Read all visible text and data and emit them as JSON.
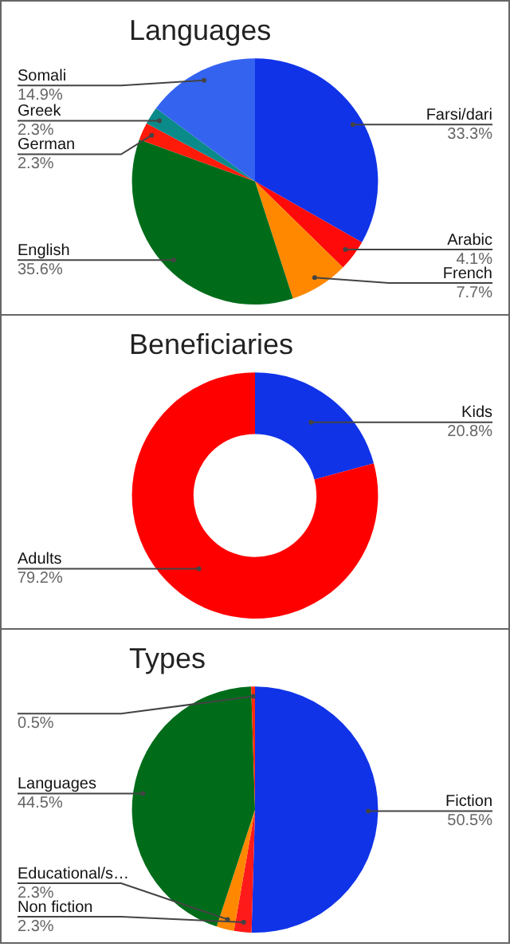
{
  "chart_data": [
    {
      "type": "pie",
      "title": "Languages",
      "categories": [
        "Farsi/dari",
        "Arabic",
        "French",
        "English",
        "German",
        "Greek",
        "Somali"
      ],
      "values": [
        33.3,
        4.1,
        7.7,
        35.6,
        2.3,
        2.3,
        14.9
      ],
      "colors": [
        "#1033e8",
        "#ff0a0a",
        "#ff8800",
        "#006c1a",
        "#ff1a0a",
        "#0b8a8a",
        "#3463f0"
      ],
      "value_labels": [
        "33.3%",
        "4.1%",
        "7.7%",
        "35.6%",
        "2.3%",
        "2.3%",
        "14.9%"
      ]
    },
    {
      "type": "donut",
      "title": "Beneficiaries",
      "categories": [
        "Kids",
        "Adults"
      ],
      "values": [
        20.8,
        79.2
      ],
      "colors": [
        "#1033e8",
        "#ff0000"
      ],
      "value_labels": [
        "20.8%",
        "79.2%"
      ]
    },
    {
      "type": "pie",
      "title": "Types",
      "categories": [
        "Fiction",
        "Non fiction",
        "Educational/s…",
        "Languages",
        null
      ],
      "values": [
        50.5,
        2.3,
        2.3,
        44.5,
        0.5
      ],
      "colors": [
        "#1033e8",
        "#ff1a1a",
        "#ff8800",
        "#006c1a",
        "#ff2a0a"
      ],
      "value_labels": [
        "50.5%",
        "2.3%",
        "2.3%",
        "44.5%",
        "0.5%"
      ]
    }
  ]
}
